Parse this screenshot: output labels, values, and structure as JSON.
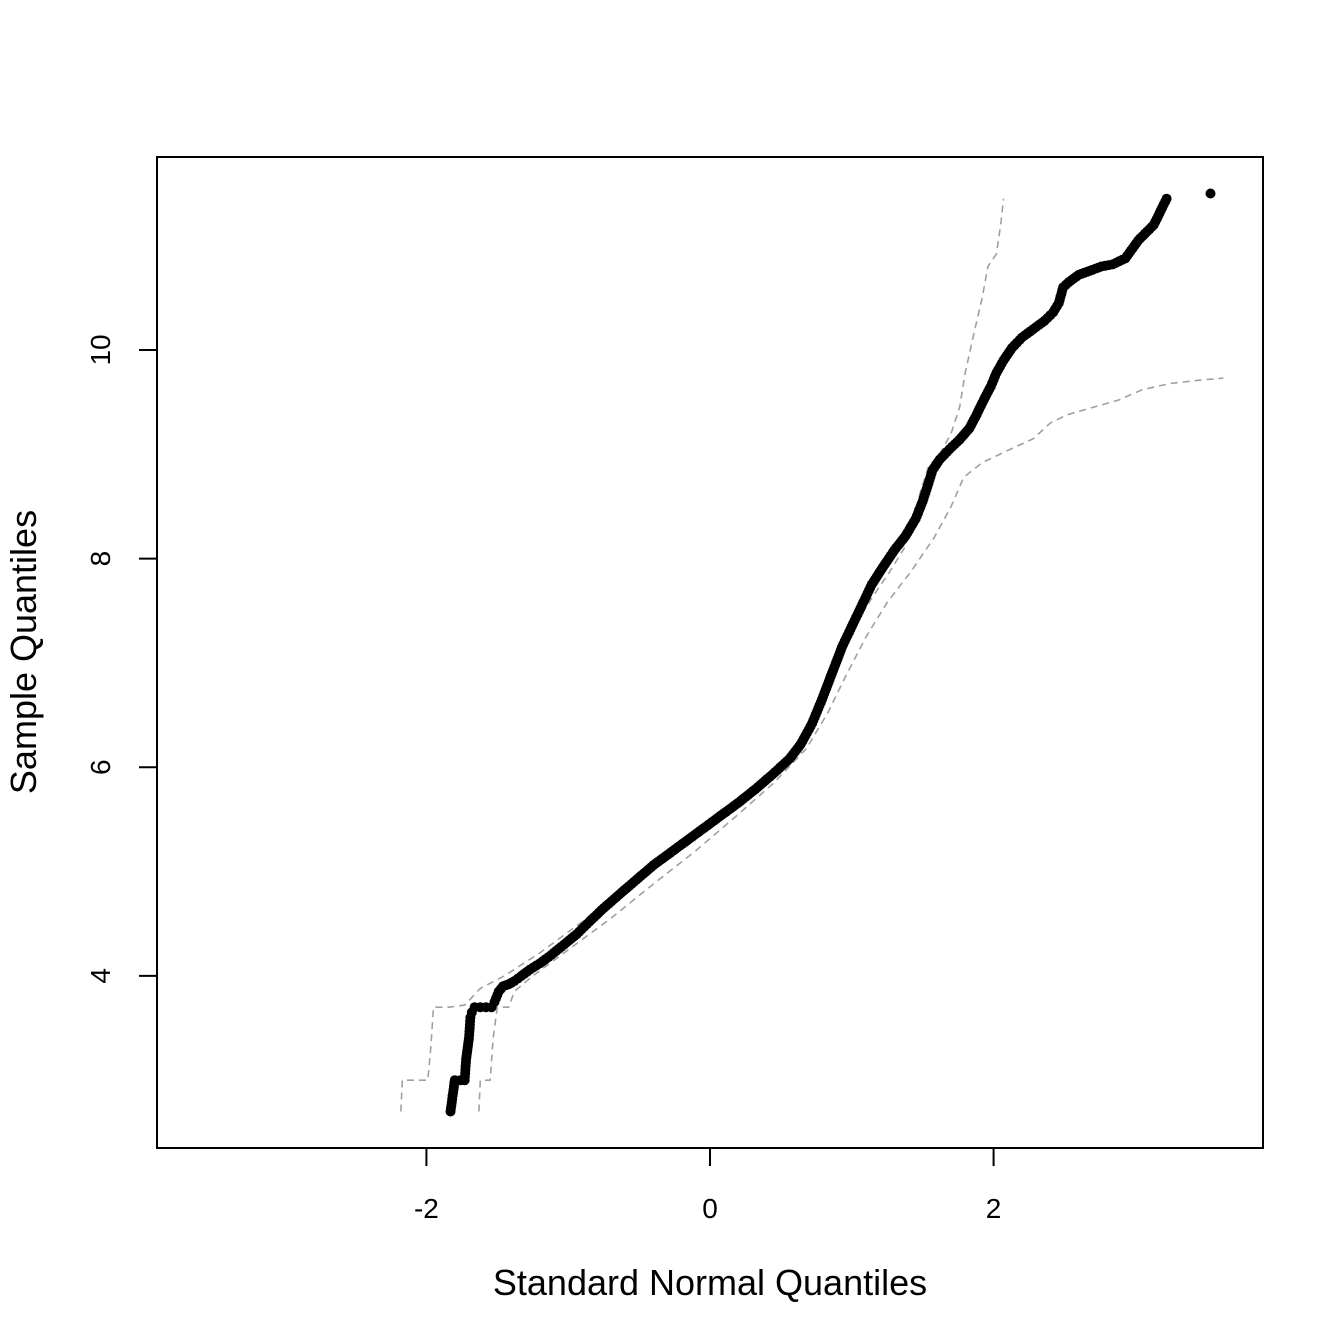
{
  "chart_data": {
    "type": "scatter",
    "title": "",
    "xlabel": "Standard Normal Quantiles",
    "ylabel": "Sample Quantiles",
    "xlim": [
      -3.9,
      3.9
    ],
    "ylim": [
      2.35,
      11.85
    ],
    "x_ticks": [
      "-2",
      "0",
      "2"
    ],
    "y_ticks": [
      "4",
      "6",
      "8",
      "10"
    ],
    "grid": false,
    "colors": {
      "points": "#000000",
      "envelope": "#a0a0a0",
      "frame": "#000000"
    },
    "series": [
      {
        "points": [
          [
            -1.83,
            2.7
          ],
          [
            -1.8,
            3.0
          ],
          [
            -1.76,
            3.0
          ],
          [
            -1.73,
            3.0
          ],
          [
            -1.72,
            3.2
          ],
          [
            -1.7,
            3.4
          ],
          [
            -1.69,
            3.6
          ],
          [
            -1.68,
            3.65
          ],
          [
            -1.66,
            3.7
          ],
          [
            -1.62,
            3.7
          ],
          [
            -1.58,
            3.7
          ],
          [
            -1.54,
            3.7
          ],
          [
            -1.52,
            3.75
          ],
          [
            -1.49,
            3.85
          ],
          [
            -1.46,
            3.9
          ],
          [
            -1.42,
            3.92
          ],
          [
            -1.38,
            3.95
          ],
          [
            -1.33,
            4.0
          ],
          [
            -1.27,
            4.06
          ],
          [
            -1.2,
            4.12
          ],
          [
            -1.12,
            4.2
          ],
          [
            -1.03,
            4.3
          ],
          [
            -0.94,
            4.4
          ],
          [
            -0.85,
            4.52
          ],
          [
            -0.75,
            4.65
          ],
          [
            -0.64,
            4.78
          ],
          [
            -0.52,
            4.92
          ],
          [
            -0.4,
            5.06
          ],
          [
            -0.28,
            5.18
          ],
          [
            -0.16,
            5.3
          ],
          [
            -0.04,
            5.42
          ],
          [
            0.08,
            5.54
          ],
          [
            0.2,
            5.66
          ],
          [
            0.32,
            5.79
          ],
          [
            0.44,
            5.93
          ],
          [
            0.56,
            6.08
          ],
          [
            0.64,
            6.22
          ],
          [
            0.72,
            6.42
          ],
          [
            0.79,
            6.65
          ],
          [
            0.86,
            6.9
          ],
          [
            0.93,
            7.15
          ],
          [
            1.0,
            7.35
          ],
          [
            1.07,
            7.55
          ],
          [
            1.14,
            7.75
          ],
          [
            1.22,
            7.92
          ],
          [
            1.3,
            8.08
          ],
          [
            1.38,
            8.22
          ],
          [
            1.45,
            8.38
          ],
          [
            1.5,
            8.55
          ],
          [
            1.54,
            8.72
          ],
          [
            1.57,
            8.85
          ],
          [
            1.62,
            8.95
          ],
          [
            1.69,
            9.05
          ],
          [
            1.76,
            9.14
          ],
          [
            1.83,
            9.25
          ],
          [
            1.88,
            9.38
          ],
          [
            1.93,
            9.52
          ],
          [
            1.98,
            9.65
          ],
          [
            2.02,
            9.78
          ],
          [
            2.07,
            9.9
          ],
          [
            2.13,
            10.02
          ],
          [
            2.2,
            10.12
          ],
          [
            2.28,
            10.2
          ],
          [
            2.36,
            10.28
          ],
          [
            2.42,
            10.36
          ],
          [
            2.46,
            10.45
          ],
          [
            2.49,
            10.6
          ],
          [
            2.53,
            10.65
          ],
          [
            2.6,
            10.72
          ],
          [
            2.68,
            10.76
          ],
          [
            2.76,
            10.8
          ],
          [
            2.84,
            10.82
          ],
          [
            2.93,
            10.88
          ],
          [
            3.02,
            11.05
          ],
          [
            3.13,
            11.2
          ],
          [
            3.22,
            11.45
          ],
          [
            3.53,
            11.5
          ]
        ]
      }
    ],
    "envelope_upper": [
      [
        -2.18,
        2.7
      ],
      [
        -2.17,
        3.0
      ],
      [
        -1.99,
        3.0
      ],
      [
        -1.97,
        3.3
      ],
      [
        -1.95,
        3.7
      ],
      [
        -1.84,
        3.7
      ],
      [
        -1.73,
        3.72
      ],
      [
        -1.62,
        3.88
      ],
      [
        -1.45,
        4.0
      ],
      [
        -1.2,
        4.22
      ],
      [
        -0.9,
        4.52
      ],
      [
        -0.6,
        4.85
      ],
      [
        -0.3,
        5.16
      ],
      [
        0.0,
        5.47
      ],
      [
        0.3,
        5.78
      ],
      [
        0.55,
        6.08
      ],
      [
        0.7,
        6.38
      ],
      [
        0.82,
        6.72
      ],
      [
        0.92,
        7.05
      ],
      [
        1.02,
        7.35
      ],
      [
        1.14,
        7.62
      ],
      [
        1.27,
        7.88
      ],
      [
        1.37,
        8.1
      ],
      [
        1.43,
        8.35
      ],
      [
        1.48,
        8.62
      ],
      [
        1.54,
        8.88
      ],
      [
        1.62,
        9.0
      ],
      [
        1.7,
        9.2
      ],
      [
        1.76,
        9.45
      ],
      [
        1.8,
        9.78
      ],
      [
        1.86,
        10.15
      ],
      [
        1.92,
        10.5
      ],
      [
        1.96,
        10.8
      ],
      [
        2.02,
        10.92
      ],
      [
        2.05,
        11.2
      ],
      [
        2.07,
        11.45
      ]
    ],
    "envelope_lower": [
      [
        -1.63,
        2.7
      ],
      [
        -1.62,
        3.0
      ],
      [
        -1.55,
        3.0
      ],
      [
        -1.53,
        3.4
      ],
      [
        -1.5,
        3.7
      ],
      [
        -1.42,
        3.7
      ],
      [
        -1.38,
        3.85
      ],
      [
        -1.25,
        4.0
      ],
      [
        -1.0,
        4.25
      ],
      [
        -0.7,
        4.55
      ],
      [
        -0.4,
        4.88
      ],
      [
        -0.1,
        5.2
      ],
      [
        0.2,
        5.55
      ],
      [
        0.45,
        5.85
      ],
      [
        0.68,
        6.18
      ],
      [
        0.83,
        6.52
      ],
      [
        0.96,
        6.88
      ],
      [
        1.1,
        7.25
      ],
      [
        1.25,
        7.58
      ],
      [
        1.42,
        7.88
      ],
      [
        1.58,
        8.2
      ],
      [
        1.7,
        8.5
      ],
      [
        1.79,
        8.78
      ],
      [
        1.92,
        8.92
      ],
      [
        2.12,
        9.05
      ],
      [
        2.28,
        9.15
      ],
      [
        2.4,
        9.3
      ],
      [
        2.52,
        9.38
      ],
      [
        2.7,
        9.45
      ],
      [
        2.88,
        9.52
      ],
      [
        3.05,
        9.62
      ],
      [
        3.25,
        9.68
      ],
      [
        3.45,
        9.71
      ],
      [
        3.62,
        9.73
      ]
    ]
  }
}
